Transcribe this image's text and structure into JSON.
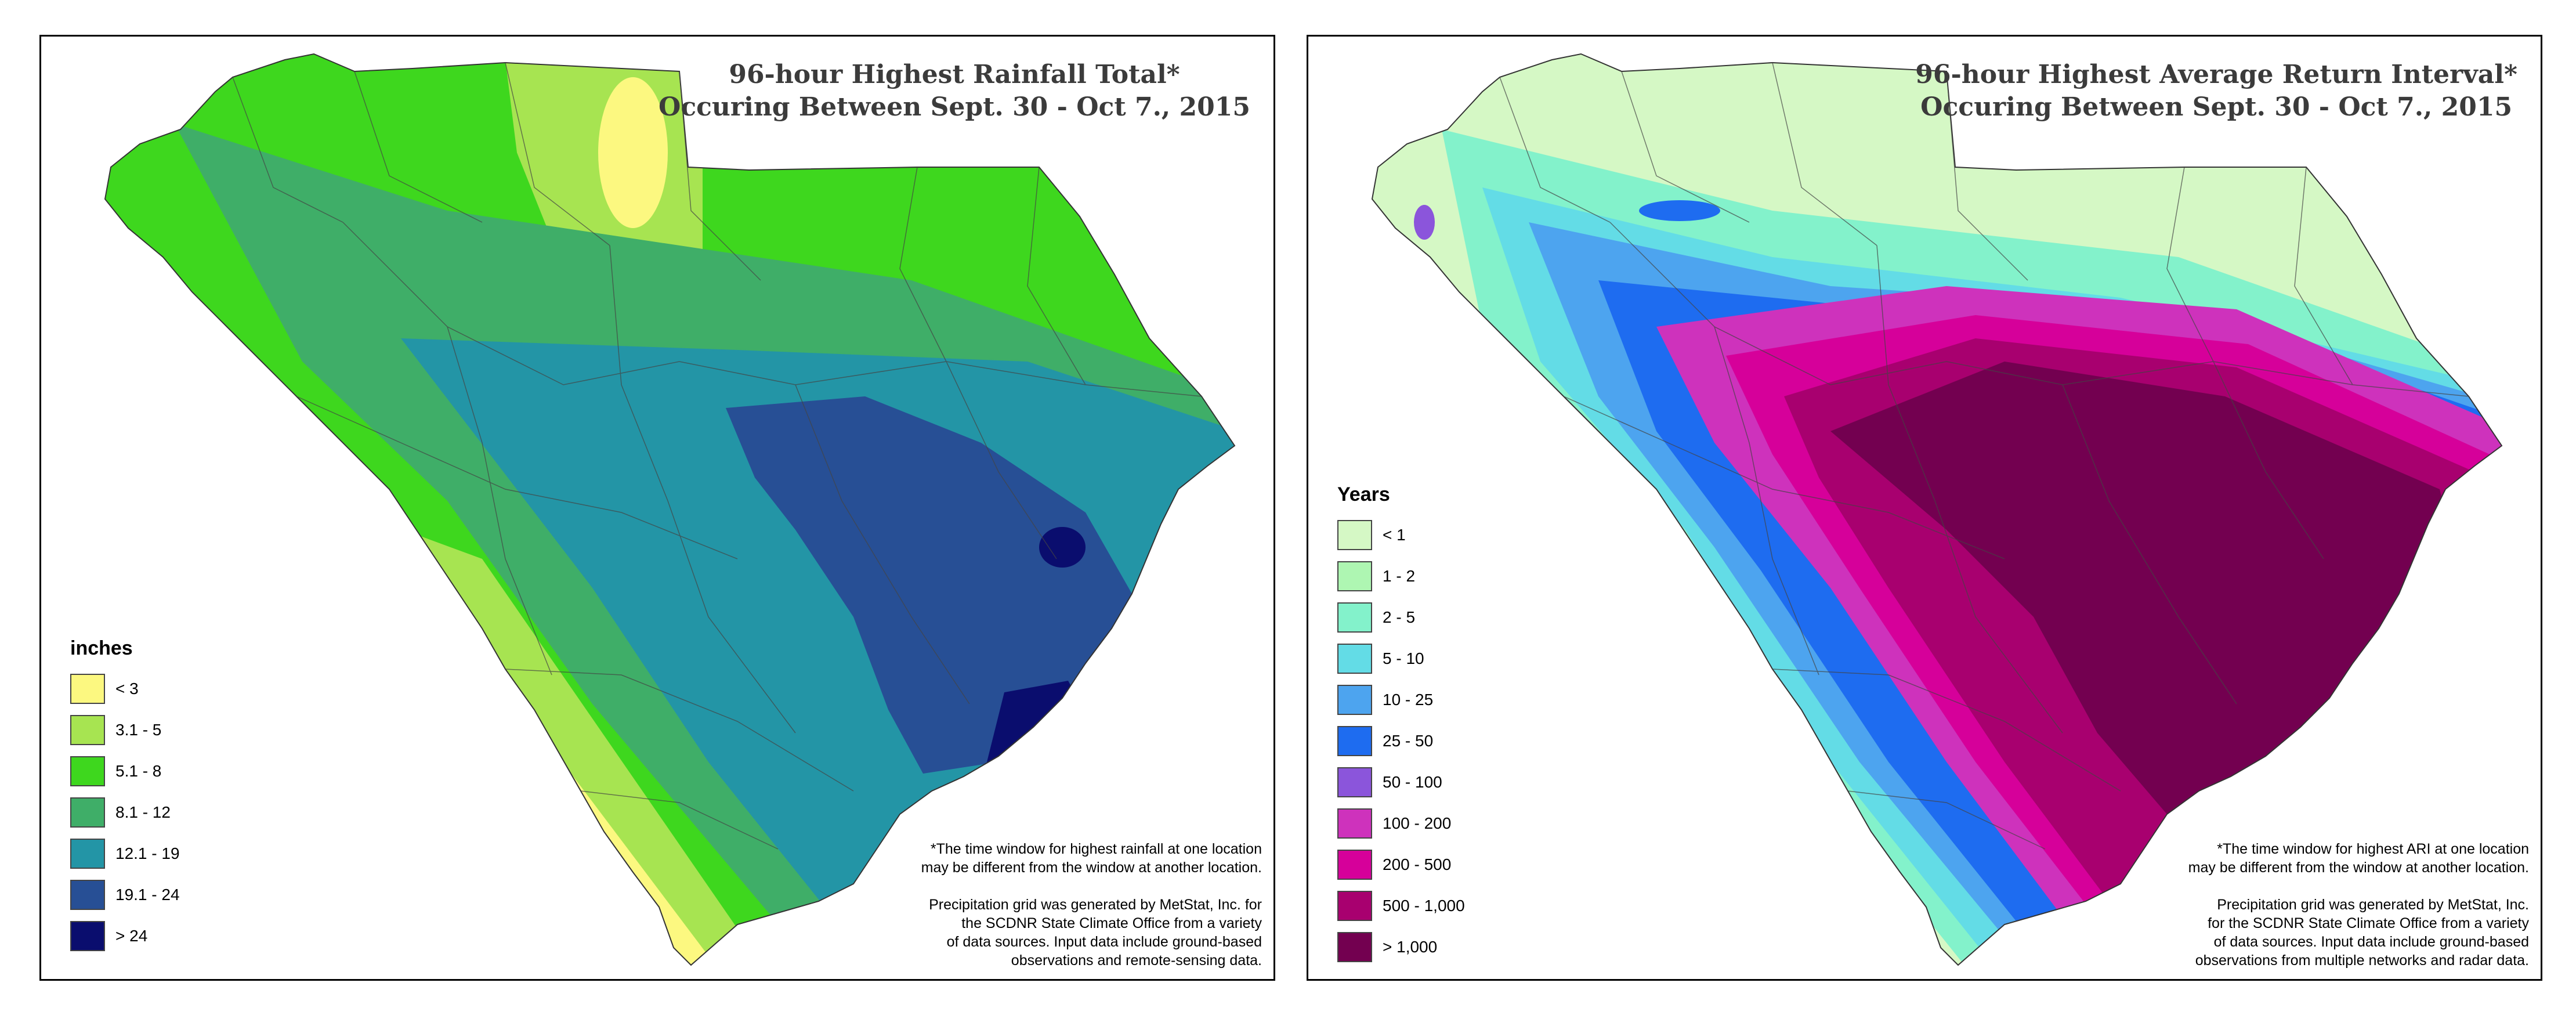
{
  "left_map": {
    "title_line1": "96-hour Highest Rainfall Total*",
    "title_line2": "Occuring Between Sept. 30 - Oct 7., 2015",
    "legend_title": "inches",
    "legend": [
      {
        "label": "< 3",
        "color": "#FCF880"
      },
      {
        "label": "3.1 - 5",
        "color": "#A7E451"
      },
      {
        "label": "5.1 - 8",
        "color": "#3ED71E"
      },
      {
        "label": "8.1 - 12",
        "color": "#3FAE68"
      },
      {
        "label": "12.1 - 19",
        "color": "#2395A6"
      },
      {
        "label": "19.1 - 24",
        "color": "#274F95"
      },
      {
        "label": "> 24",
        "color": "#0A0D6E"
      }
    ],
    "note1": [
      "*The time window for highest rainfall at one location",
      "may be different from the window at another location."
    ],
    "note2": [
      "Precipitation grid was generated by MetStat, Inc. for",
      "the SCDNR State Climate Office from a variety",
      "of data sources. Input data include ground-based",
      "observations and remote-sensing data."
    ]
  },
  "right_map": {
    "title_line1": "96-hour Highest Average Return Interval*",
    "title_line2": "Occuring Between Sept. 30 - Oct 7., 2015",
    "legend_title": "Years",
    "legend": [
      {
        "label": "< 1",
        "color": "#D5F8C5"
      },
      {
        "label": "1 - 2",
        "color": "#AEF6B2"
      },
      {
        "label": "2 - 5",
        "color": "#83F2CB"
      },
      {
        "label": "5 - 10",
        "color": "#63DCE6"
      },
      {
        "label": "10 - 25",
        "color": "#4DA4EF"
      },
      {
        "label": "25 - 50",
        "color": "#1E6CF0"
      },
      {
        "label": "50 - 100",
        "color": "#8B55DB"
      },
      {
        "label": "100 - 200",
        "color": "#CE32BC"
      },
      {
        "label": "200 - 500",
        "color": "#D6009A"
      },
      {
        "label": "500 - 1,000",
        "color": "#A8006F"
      },
      {
        "label": "> 1,000",
        "color": "#730050"
      }
    ],
    "note1": [
      "*The time window for highest ARI at one location",
      "may be different from the window at another location."
    ],
    "note2": [
      "Precipitation grid was generated by MetStat, Inc.",
      "for the SCDNR State Climate Office from a variety",
      "of data sources. Input data include ground-based",
      "observations from multiple networks and radar data."
    ]
  }
}
